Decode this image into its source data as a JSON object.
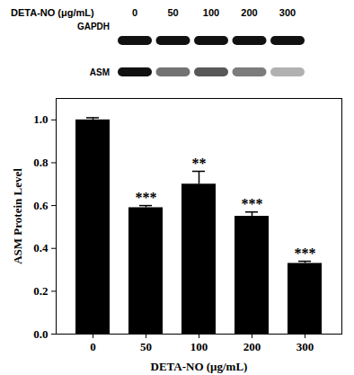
{
  "chart_data": {
    "type": "bar",
    "x_label": "DETA-NO (μg/mL)",
    "y_label": "ASM Protein Level",
    "categories": [
      "0",
      "50",
      "100",
      "200",
      "300"
    ],
    "values": [
      1.0,
      0.59,
      0.7,
      0.55,
      0.33
    ],
    "errors": [
      0.01,
      0.01,
      0.06,
      0.02,
      0.01
    ],
    "annotations": [
      {
        "category": "50",
        "text": "***"
      },
      {
        "category": "100",
        "text": "**"
      },
      {
        "category": "200",
        "text": "***"
      },
      {
        "category": "300",
        "text": "***"
      }
    ],
    "color": "#000000",
    "ylim": [
      0,
      1.1
    ],
    "yticks": [
      {
        "value": 0,
        "label": "0.0"
      },
      {
        "value": 0.2,
        "label": "0.2"
      },
      {
        "value": 0.4,
        "label": "0.4"
      },
      {
        "value": 0.6,
        "label": "0.6"
      },
      {
        "value": 0.8,
        "label": "0.8"
      },
      {
        "value": 1.0,
        "label": "1.0"
      }
    ],
    "grid": false
  },
  "blot": {
    "header": "DETA-NO (μg/mL)",
    "lanes": [
      "0",
      "50",
      "100",
      "200",
      "300"
    ],
    "rows": [
      "GAPDH",
      "ASM"
    ]
  }
}
